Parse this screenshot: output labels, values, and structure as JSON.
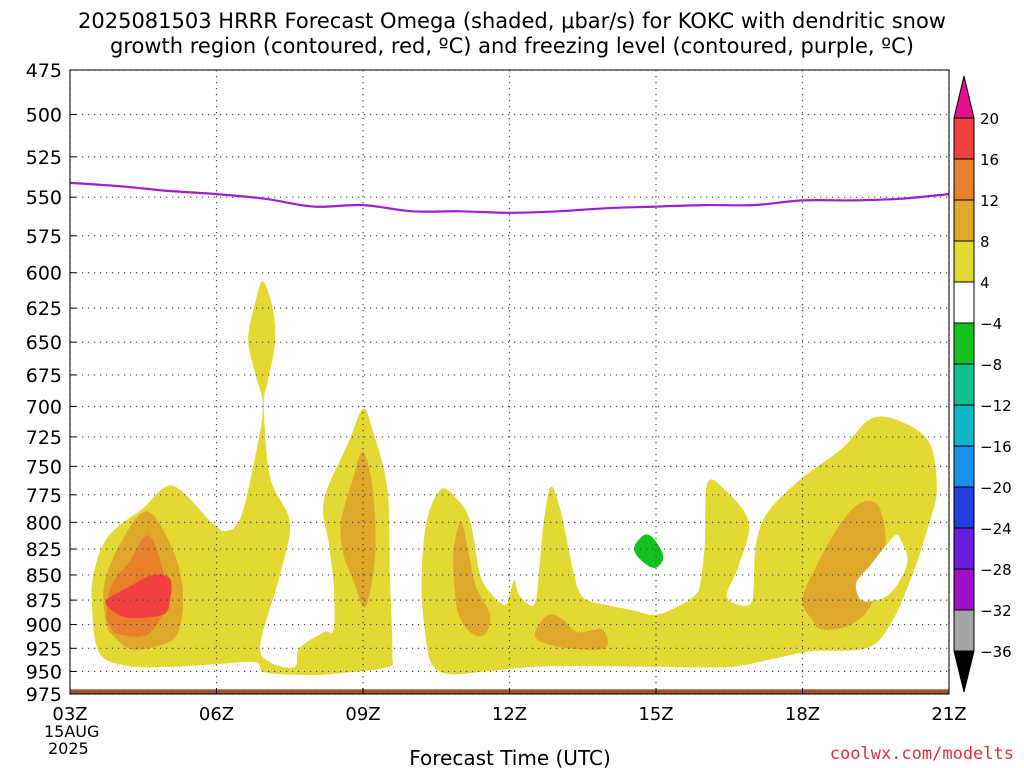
{
  "title_line1": "2025081503 HRRR Forecast Omega (shaded, μbar/s) for KOKC with dendritic snow",
  "title_line2": "growth region (contoured, red, ºC) and freezing level (contoured, purple, ºC)",
  "credit": "coolwx.com/modelts",
  "chart_data": {
    "type": "area",
    "title": "2025081503 HRRR Forecast Omega (shaded, μbar/s) for KOKC with dendritic snow growth region (contoured, red, ºC) and freezing level (contoured, purple, ºC)",
    "xlabel": "Forecast Time (UTC)",
    "ylabel": "",
    "x_ticks": [
      {
        "label": "03Z",
        "hour": 0
      },
      {
        "label": "06Z",
        "hour": 3
      },
      {
        "label": "09Z",
        "hour": 6
      },
      {
        "label": "12Z",
        "hour": 9
      },
      {
        "label": "15Z",
        "hour": 12
      },
      {
        "label": "18Z",
        "hour": 15
      },
      {
        "label": "21Z",
        "hour": 18
      }
    ],
    "x_date_line1": "15AUG",
    "x_date_line2": "2025",
    "xlim_hours": [
      0,
      18
    ],
    "y_ticks": [
      475,
      500,
      525,
      550,
      575,
      600,
      625,
      650,
      675,
      700,
      725,
      750,
      775,
      800,
      825,
      850,
      875,
      900,
      925,
      950,
      975
    ],
    "ylim_hPa": [
      475,
      975
    ],
    "y_scale": "log",
    "grid": true,
    "colorbar": {
      "levels": [
        20,
        16,
        12,
        8,
        4,
        -4,
        -8,
        -12,
        -16,
        -20,
        -24,
        -28,
        -32,
        -36
      ],
      "colors": [
        "#e60e8c",
        "#f04040",
        "#e87f2a",
        "#dfa82b",
        "#e4d832",
        "#ffffff",
        "#12c21c",
        "#10c08e",
        "#11b6c6",
        "#1890ee",
        "#2040e0",
        "#6a1ce0",
        "#a010c8",
        "#a5a5a5",
        "#000000"
      ]
    },
    "freezing_level": {
      "color": "#a020d0",
      "hours": [
        0,
        1,
        2,
        3,
        4,
        5,
        6,
        7,
        8,
        9,
        10,
        11,
        12,
        13,
        14,
        15,
        16,
        17,
        18
      ],
      "hPa": [
        541,
        543,
        546,
        548,
        551,
        556,
        555,
        559,
        559,
        560,
        559,
        557,
        556,
        555,
        555,
        552,
        552,
        551,
        548
      ]
    },
    "omega_regions": [
      {
        "level": "4 to 8",
        "color": "#e4d832",
        "points": [
          [
            0.5,
            845
          ],
          [
            0.8,
            812
          ],
          [
            1.5,
            787
          ],
          [
            2.1,
            767
          ],
          [
            2.9,
            800
          ],
          [
            3.2,
            808
          ],
          [
            3.5,
            795
          ],
          [
            3.8,
            740
          ],
          [
            3.95,
            700
          ],
          [
            3.8,
            675
          ],
          [
            3.65,
            648
          ],
          [
            3.8,
            620
          ],
          [
            3.95,
            606
          ],
          [
            4.15,
            625
          ],
          [
            4.2,
            650
          ],
          [
            4.05,
            680
          ],
          [
            3.97,
            700
          ],
          [
            4.1,
            760
          ],
          [
            4.5,
            800
          ],
          [
            4.3,
            850
          ],
          [
            3.9,
            920
          ],
          [
            4.1,
            940
          ],
          [
            4.6,
            945
          ],
          [
            4.7,
            925
          ],
          [
            5.2,
            908
          ],
          [
            5.4,
            905
          ],
          [
            5.4,
            860
          ],
          [
            5.3,
            820
          ],
          [
            5.2,
            780
          ],
          [
            5.7,
            730
          ],
          [
            6.0,
            702
          ],
          [
            6.2,
            720
          ],
          [
            6.5,
            770
          ],
          [
            6.55,
            850
          ],
          [
            6.6,
            930
          ],
          [
            6.5,
            945
          ],
          [
            5.5,
            952
          ],
          [
            4.9,
            954
          ],
          [
            4.0,
            951
          ],
          [
            3.8,
            940
          ],
          [
            3.0,
            942
          ],
          [
            2.0,
            945
          ],
          [
            1.2,
            944
          ],
          [
            0.6,
            930
          ],
          [
            0.45,
            880
          ]
        ]
      },
      {
        "level": "4 to 8",
        "color": "#e4d832",
        "points": [
          [
            7.3,
            920
          ],
          [
            7.2,
            860
          ],
          [
            7.3,
            800
          ],
          [
            7.6,
            770
          ],
          [
            7.95,
            780
          ],
          [
            8.2,
            800
          ],
          [
            8.4,
            850
          ],
          [
            8.65,
            870
          ],
          [
            8.9,
            880
          ],
          [
            9.0,
            870
          ],
          [
            9.1,
            855
          ],
          [
            9.2,
            870
          ],
          [
            9.5,
            880
          ],
          [
            9.6,
            850
          ],
          [
            9.7,
            800
          ],
          [
            9.85,
            768
          ],
          [
            10.05,
            790
          ],
          [
            10.3,
            845
          ],
          [
            10.5,
            872
          ],
          [
            11.0,
            880
          ],
          [
            11.5,
            885
          ],
          [
            12.0,
            890
          ],
          [
            12.5,
            880
          ],
          [
            12.8,
            870
          ],
          [
            12.9,
            860
          ],
          [
            13.0,
            820
          ],
          [
            13.05,
            765
          ],
          [
            13.4,
            770
          ],
          [
            13.9,
            800
          ],
          [
            13.7,
            840
          ],
          [
            13.45,
            870
          ],
          [
            13.7,
            880
          ],
          [
            13.95,
            878
          ],
          [
            14.0,
            860
          ],
          [
            14.05,
            820
          ],
          [
            14.3,
            790
          ],
          [
            15.0,
            760
          ],
          [
            15.8,
            735
          ],
          [
            16.4,
            710
          ],
          [
            17.0,
            712
          ],
          [
            17.6,
            730
          ],
          [
            17.75,
            770
          ],
          [
            17.6,
            800
          ],
          [
            17.25,
            850
          ],
          [
            16.8,
            900
          ],
          [
            16.3,
            925
          ],
          [
            15.2,
            928
          ],
          [
            14.5,
            935
          ],
          [
            13.5,
            945
          ],
          [
            12.0,
            945
          ],
          [
            10.5,
            944
          ],
          [
            9.5,
            945
          ],
          [
            8.5,
            950
          ],
          [
            7.8,
            953
          ],
          [
            7.45,
            945
          ]
        ]
      },
      {
        "level": "8 to 12",
        "color": "#dfa82b",
        "points": [
          [
            0.75,
            900
          ],
          [
            0.7,
            860
          ],
          [
            1.05,
            818
          ],
          [
            1.55,
            790
          ],
          [
            2.0,
            815
          ],
          [
            2.3,
            860
          ],
          [
            2.2,
            910
          ],
          [
            1.6,
            925
          ],
          [
            1.2,
            925
          ],
          [
            0.9,
            912
          ]
        ]
      },
      {
        "level": "8 to 12",
        "color": "#dfa82b",
        "points": [
          [
            5.55,
            800
          ],
          [
            5.8,
            760
          ],
          [
            6.0,
            738
          ],
          [
            6.2,
            770
          ],
          [
            6.25,
            830
          ],
          [
            6.05,
            882
          ],
          [
            5.8,
            855
          ],
          [
            5.6,
            830
          ]
        ]
      },
      {
        "level": "8 to 12",
        "color": "#dfa82b",
        "points": [
          [
            7.9,
            875
          ],
          [
            7.85,
            830
          ],
          [
            8.0,
            800
          ],
          [
            8.15,
            825
          ],
          [
            8.3,
            860
          ],
          [
            8.6,
            890
          ],
          [
            8.5,
            910
          ],
          [
            8.25,
            910
          ],
          [
            8.0,
            895
          ]
        ]
      },
      {
        "level": "8 to 12",
        "color": "#dfa82b",
        "points": [
          [
            9.55,
            905
          ],
          [
            9.8,
            890
          ],
          [
            10.1,
            895
          ],
          [
            10.4,
            908
          ],
          [
            10.9,
            905
          ],
          [
            10.95,
            925
          ],
          [
            10.2,
            925
          ],
          [
            9.6,
            917
          ]
        ]
      },
      {
        "level": "8 to 12",
        "color": "#dfa82b",
        "points": [
          [
            15.2,
            895
          ],
          [
            15.0,
            875
          ],
          [
            15.3,
            840
          ],
          [
            15.8,
            800
          ],
          [
            16.2,
            782
          ],
          [
            16.55,
            785
          ],
          [
            16.7,
            820
          ],
          [
            16.45,
            875
          ],
          [
            16.0,
            900
          ],
          [
            15.4,
            905
          ]
        ]
      },
      {
        "level": "12 to 16",
        "color": "#e87f2a",
        "points": [
          [
            0.75,
            890
          ],
          [
            0.85,
            860
          ],
          [
            1.2,
            838
          ],
          [
            1.6,
            812
          ],
          [
            1.9,
            845
          ],
          [
            1.95,
            880
          ],
          [
            1.6,
            910
          ],
          [
            1.0,
            910
          ],
          [
            0.8,
            900
          ]
        ]
      },
      {
        "level": "16 to 20",
        "color": "#f04040",
        "points": [
          [
            0.75,
            875
          ],
          [
            1.2,
            862
          ],
          [
            1.7,
            850
          ],
          [
            2.05,
            854
          ],
          [
            2.05,
            875
          ],
          [
            1.9,
            890
          ],
          [
            1.2,
            893
          ],
          [
            0.85,
            885
          ]
        ]
      },
      {
        "level": "-8 to -4",
        "color": "#12c21c",
        "points": [
          [
            11.55,
            825
          ],
          [
            11.75,
            812
          ],
          [
            11.95,
            815
          ],
          [
            12.15,
            832
          ],
          [
            12.0,
            843
          ],
          [
            11.75,
            838
          ]
        ]
      }
    ],
    "cutouts": [
      {
        "color": "#ffffff",
        "points": [
          [
            16.1,
            858
          ],
          [
            16.4,
            840
          ],
          [
            16.65,
            825
          ],
          [
            16.9,
            812
          ],
          [
            17.0,
            815
          ],
          [
            17.15,
            835
          ],
          [
            17.0,
            855
          ],
          [
            16.75,
            870
          ],
          [
            16.5,
            875
          ],
          [
            16.2,
            875
          ]
        ]
      }
    ],
    "surface": {
      "color": "#a0522d",
      "hPa": 972
    }
  }
}
